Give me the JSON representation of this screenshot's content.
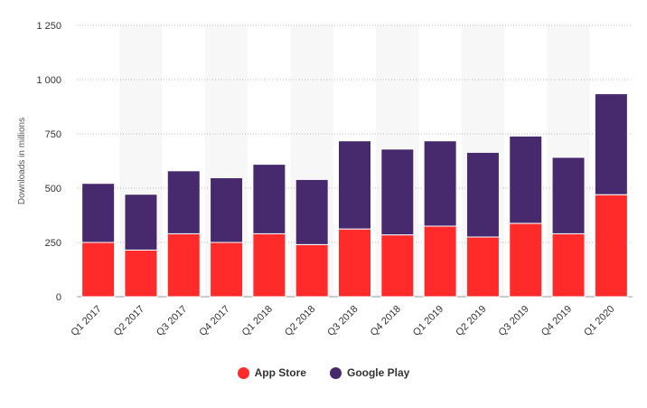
{
  "chart_data": {
    "type": "bar",
    "stacked": true,
    "categories": [
      "Q1 2017",
      "Q2 2017",
      "Q3 2017",
      "Q4 2017",
      "Q1 2018",
      "Q2 2018",
      "Q3 2018",
      "Q4 2018",
      "Q1 2019",
      "Q2 2019",
      "Q3 2019",
      "Q4 2019",
      "Q1 2020"
    ],
    "series": [
      {
        "name": "App Store",
        "color": "#ff2b2b",
        "values": [
          250,
          215,
          290,
          250,
          290,
          240,
          312,
          285,
          325,
          275,
          338,
          290,
          470
        ]
      },
      {
        "name": "Google Play",
        "color": "#472a6e",
        "values": [
          272,
          257,
          290,
          298,
          320,
          300,
          406,
          395,
          393,
          390,
          402,
          352,
          465
        ]
      }
    ],
    "ylabel": "Downloads in millions",
    "ylim": [
      0,
      1250
    ],
    "yticks": [
      0,
      250,
      500,
      750,
      1000,
      1250
    ],
    "ytick_labels": [
      "0",
      "250",
      "500",
      "750",
      "1 000",
      "1 250"
    ],
    "grid": true,
    "legend_position": "bottom-center"
  }
}
